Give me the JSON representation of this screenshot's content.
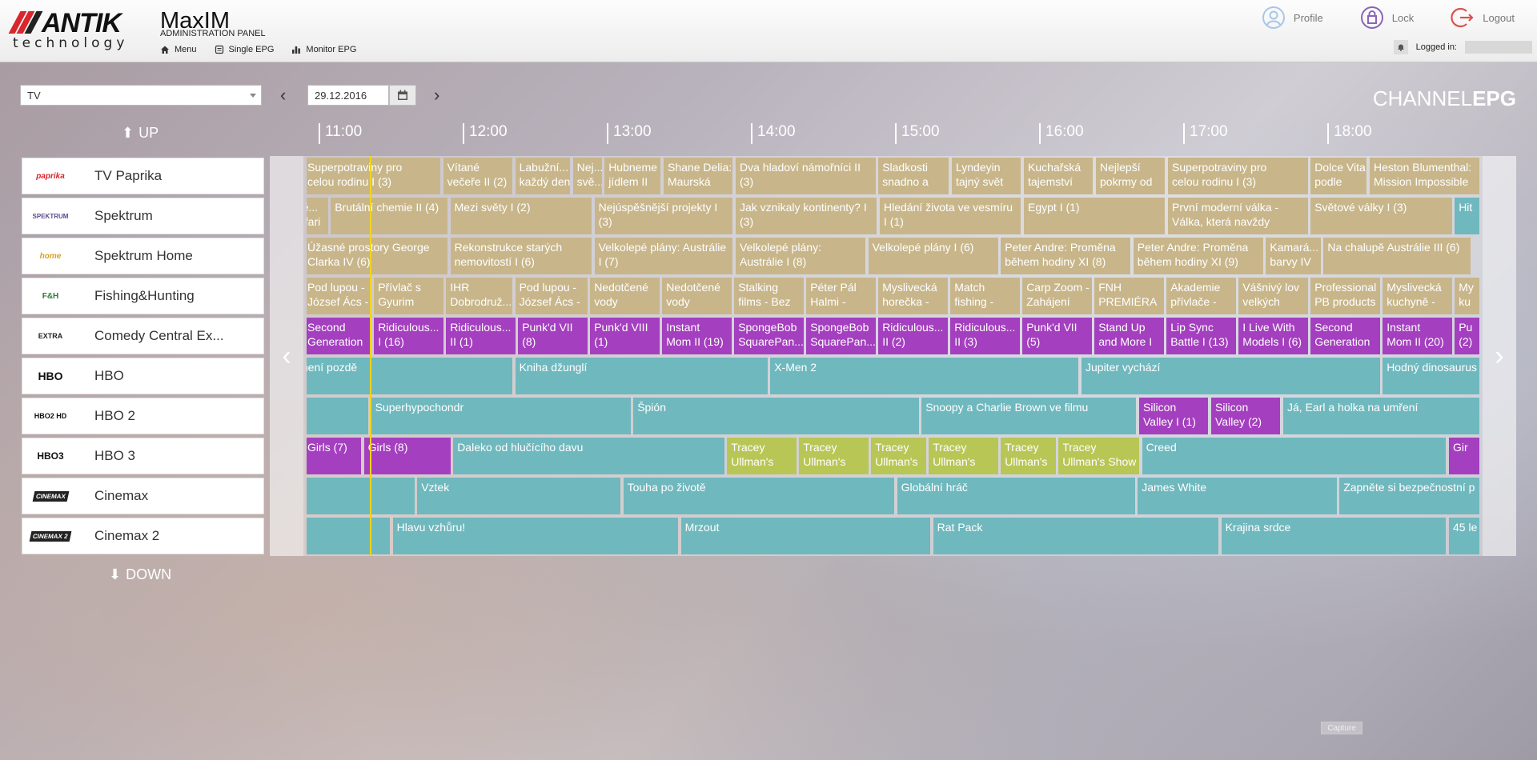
{
  "header": {
    "logo_word": "ANTIK",
    "logo_sub": "technology",
    "app_title": "MaxIM",
    "app_subtitle": "ADMINISTRATION PANEL",
    "nav": [
      {
        "label": "Menu",
        "icon": "home-icon"
      },
      {
        "label": "Single EPG",
        "icon": "list-icon"
      },
      {
        "label": "Monitor EPG",
        "icon": "bar-chart-icon"
      }
    ],
    "actions": [
      {
        "label": "Profile",
        "icon": "user-icon"
      },
      {
        "label": "Lock",
        "icon": "lock-icon"
      },
      {
        "label": "Logout",
        "icon": "logout-icon"
      }
    ],
    "logged_in_label": "Logged in:",
    "accent_colors": {
      "profile": "#a9c6e8",
      "lock": "#8a63b8",
      "logout": "#d9534f"
    }
  },
  "controls": {
    "group_select": "TV",
    "date": "29.12.2016",
    "up_label": "UP",
    "down_label": "DOWN",
    "title_light": "CHANNEL",
    "title_bold": "EPG"
  },
  "timeline": [
    "11:00",
    "12:00",
    "13:00",
    "14:00",
    "15:00",
    "16:00",
    "17:00",
    "18:00"
  ],
  "channels": [
    {
      "name": "TV Paprika",
      "logo": "paprika"
    },
    {
      "name": "Spektrum",
      "logo": "SPEKTRUM"
    },
    {
      "name": "Spektrum Home",
      "logo": "home"
    },
    {
      "name": "Fishing&Hunting",
      "logo": "F&H"
    },
    {
      "name": "Comedy Central Ex...",
      "logo": "EXTRA"
    },
    {
      "name": "HBO",
      "logo": "HBO"
    },
    {
      "name": "HBO 2",
      "logo": "HBO2 HD"
    },
    {
      "name": "HBO 3",
      "logo": "HBO3"
    },
    {
      "name": "Cinemax",
      "logo": "CINEMAX"
    },
    {
      "name": "Cinemax 2",
      "logo": "CINEMAX 2"
    }
  ],
  "colors": {
    "tan": "#c8b68a",
    "purple": "#a43fbf",
    "teal": "#6fb8be",
    "lime": "#b8c656"
  },
  "schedule": [
    [
      {
        "t": [
          "Superpotraviny pro",
          "celou rodinu I (3)"
        ],
        "s": 0,
        "e": 0.95,
        "c": "tan"
      },
      {
        "t": [
          "Vítané",
          "večeře II (2)"
        ],
        "s": 0.97,
        "e": 1.45,
        "c": "tan"
      },
      {
        "t": [
          "Labužní...",
          "každý den"
        ],
        "s": 1.47,
        "e": 1.85,
        "c": "tan"
      },
      {
        "t": [
          "Nej...",
          "svě..."
        ],
        "s": 1.87,
        "e": 2.07,
        "c": "tan"
      },
      {
        "t": [
          "Hubneme",
          "jídlem II"
        ],
        "s": 2.09,
        "e": 2.48,
        "c": "tan"
      },
      {
        "t": [
          "Shane Delia:",
          "Maurská"
        ],
        "s": 2.5,
        "e": 2.98,
        "c": "tan"
      },
      {
        "t": [
          "Dva hladoví námořníci II",
          "(3)"
        ],
        "s": 3.0,
        "e": 3.97,
        "c": "tan"
      },
      {
        "t": [
          "Sladkosti",
          "snadno a"
        ],
        "s": 3.99,
        "e": 4.48,
        "c": "tan"
      },
      {
        "t": [
          "Lyndeyin",
          "tajný svět"
        ],
        "s": 4.5,
        "e": 4.98,
        "c": "tan"
      },
      {
        "t": [
          "Kuchařská",
          "tajemství"
        ],
        "s": 5.0,
        "e": 5.48,
        "c": "tan"
      },
      {
        "t": [
          "Nejlepší",
          "pokrmy od"
        ],
        "s": 5.5,
        "e": 5.98,
        "c": "tan"
      },
      {
        "t": [
          "Superpotraviny pro",
          "celou rodinu I (3)"
        ],
        "s": 6.0,
        "e": 6.97,
        "c": "tan"
      },
      {
        "t": [
          "Dolce Vita",
          "podle"
        ],
        "s": 6.99,
        "e": 7.38,
        "c": "tan"
      },
      {
        "t": [
          "Heston Blumenthal:",
          "Mission Impossible"
        ],
        "s": 7.4,
        "e": 8.2,
        "c": "tan"
      }
    ],
    [
      {
        "t": [
          "Mě...",
          "safari"
        ],
        "s": -0.1,
        "e": 0.17,
        "c": "tan"
      },
      {
        "t": [
          "Brutální chemie II (4)"
        ],
        "s": 0.19,
        "e": 1.0,
        "c": "tan"
      },
      {
        "t": [
          "Mezi světy I (2)"
        ],
        "s": 1.02,
        "e": 2.0,
        "c": "tan"
      },
      {
        "t": [
          "Nejúspěšnější projekty I",
          "(3)"
        ],
        "s": 2.02,
        "e": 2.98,
        "c": "tan"
      },
      {
        "t": [
          "Jak vznikaly kontinenty? I",
          "(3)"
        ],
        "s": 3.0,
        "e": 3.98,
        "c": "tan"
      },
      {
        "t": [
          "Hledání života ve vesmíru",
          "I (1)"
        ],
        "s": 4.0,
        "e": 4.98,
        "c": "tan"
      },
      {
        "t": [
          "Egypt I (1)"
        ],
        "s": 5.0,
        "e": 5.98,
        "c": "tan"
      },
      {
        "t": [
          "První moderní válka -",
          "Válka, která navždy"
        ],
        "s": 6.0,
        "e": 6.97,
        "c": "tan"
      },
      {
        "t": [
          "Světové války I (3)"
        ],
        "s": 6.99,
        "e": 7.97,
        "c": "tan"
      },
      {
        "t": [
          "Hit"
        ],
        "s": 7.99,
        "e": 8.3,
        "c": "teal"
      }
    ],
    [
      {
        "t": [
          "Úžasné prostory George",
          "Clarka IV (6)"
        ],
        "s": 0,
        "e": 1.0,
        "c": "tan"
      },
      {
        "t": [
          "Rekonstrukce starých",
          "nemovitostí I (6)"
        ],
        "s": 1.02,
        "e": 2.0,
        "c": "tan"
      },
      {
        "t": [
          "Velkolepé plány: Austrálie",
          "I (7)"
        ],
        "s": 2.02,
        "e": 2.98,
        "c": "tan"
      },
      {
        "t": [
          "Velkolepé plány:",
          "Austrálie I (8)"
        ],
        "s": 3.0,
        "e": 3.9,
        "c": "tan"
      },
      {
        "t": [
          "Velkolepé plány I (6)"
        ],
        "s": 3.92,
        "e": 4.82,
        "c": "tan"
      },
      {
        "t": [
          "Peter Andre: Proměna",
          "během hodiny XI (8)"
        ],
        "s": 4.84,
        "e": 5.74,
        "c": "tan"
      },
      {
        "t": [
          "Peter Andre: Proměna",
          "během hodiny XI (9)"
        ],
        "s": 5.76,
        "e": 6.66,
        "c": "tan"
      },
      {
        "t": [
          "Kamará...",
          "barvy IV"
        ],
        "s": 6.68,
        "e": 7.06,
        "c": "tan"
      },
      {
        "t": [
          "Na chalupě Austrálie III (6)"
        ],
        "s": 7.08,
        "e": 8.1,
        "c": "tan"
      }
    ],
    [
      {
        "t": [
          "Pod lupou -",
          "József Ács -"
        ],
        "s": 0,
        "e": 0.47,
        "c": "tan"
      },
      {
        "t": [
          "Přívlač s",
          "Gyurim"
        ],
        "s": 0.49,
        "e": 0.97,
        "c": "tan"
      },
      {
        "t": [
          "IHR",
          "Dobrodruž..."
        ],
        "s": 0.99,
        "e": 1.45,
        "c": "tan"
      },
      {
        "t": [
          "Pod lupou -",
          "József Ács -"
        ],
        "s": 1.47,
        "e": 1.97,
        "c": "tan"
      },
      {
        "t": [
          "Nedotčené",
          "vody"
        ],
        "s": 1.99,
        "e": 2.47,
        "c": "tan"
      },
      {
        "t": [
          "Nedotčené",
          "vody"
        ],
        "s": 2.49,
        "e": 2.97,
        "c": "tan"
      },
      {
        "t": [
          "Stalking",
          "films - Bez"
        ],
        "s": 2.99,
        "e": 3.47,
        "c": "tan"
      },
      {
        "t": [
          "Péter Pál",
          "Halmi -"
        ],
        "s": 3.49,
        "e": 3.97,
        "c": "tan"
      },
      {
        "t": [
          "Myslivecká",
          "horečka -"
        ],
        "s": 3.99,
        "e": 4.47,
        "c": "tan"
      },
      {
        "t": [
          "Match",
          "fishing -"
        ],
        "s": 4.49,
        "e": 4.97,
        "c": "tan"
      },
      {
        "t": [
          "Carp Zoom -",
          "Zahájení"
        ],
        "s": 4.99,
        "e": 5.47,
        "c": "tan"
      },
      {
        "t": [
          "FNH",
          "PREMIÉRA"
        ],
        "s": 5.49,
        "e": 5.97,
        "c": "tan"
      },
      {
        "t": [
          "Akademie",
          "přívlače -"
        ],
        "s": 5.99,
        "e": 6.47,
        "c": "tan"
      },
      {
        "t": [
          "Vášnivý lov",
          "velkých"
        ],
        "s": 6.49,
        "e": 6.97,
        "c": "tan"
      },
      {
        "t": [
          "Professional",
          "PB products"
        ],
        "s": 6.99,
        "e": 7.47,
        "c": "tan"
      },
      {
        "t": [
          "Myslivecká",
          "kuchyně -"
        ],
        "s": 7.49,
        "e": 7.97,
        "c": "tan"
      },
      {
        "t": [
          "My",
          "ku"
        ],
        "s": 7.99,
        "e": 8.3,
        "c": "tan"
      }
    ],
    [
      {
        "t": [
          "Second",
          "Generation"
        ],
        "s": 0,
        "e": 0.47,
        "c": "purple"
      },
      {
        "t": [
          "Ridiculous...",
          "I (16)"
        ],
        "s": 0.49,
        "e": 0.97,
        "c": "purple"
      },
      {
        "t": [
          "Ridiculous...",
          "II (1)"
        ],
        "s": 0.99,
        "e": 1.47,
        "c": "purple"
      },
      {
        "t": [
          "Punk'd VII",
          "(8)"
        ],
        "s": 1.49,
        "e": 1.97,
        "c": "purple"
      },
      {
        "t": [
          "Punk'd VIII",
          "(1)"
        ],
        "s": 1.99,
        "e": 2.47,
        "c": "purple"
      },
      {
        "t": [
          "Instant",
          "Mom II (19)"
        ],
        "s": 2.49,
        "e": 2.97,
        "c": "purple"
      },
      {
        "t": [
          "SpongeBob",
          "SquarePan..."
        ],
        "s": 2.99,
        "e": 3.47,
        "c": "purple"
      },
      {
        "t": [
          "SpongeBob",
          "SquarePan..."
        ],
        "s": 3.49,
        "e": 3.97,
        "c": "purple"
      },
      {
        "t": [
          "Ridiculous...",
          "II (2)"
        ],
        "s": 3.99,
        "e": 4.47,
        "c": "purple"
      },
      {
        "t": [
          "Ridiculous...",
          "II (3)"
        ],
        "s": 4.49,
        "e": 4.97,
        "c": "purple"
      },
      {
        "t": [
          "Punk'd VII",
          "(5)"
        ],
        "s": 4.99,
        "e": 5.47,
        "c": "purple"
      },
      {
        "t": [
          "Stand Up",
          "and More I"
        ],
        "s": 5.49,
        "e": 5.97,
        "c": "purple"
      },
      {
        "t": [
          "Lip Sync",
          "Battle I (13)"
        ],
        "s": 5.99,
        "e": 6.47,
        "c": "purple"
      },
      {
        "t": [
          "I Live With",
          "Models I (6)"
        ],
        "s": 6.49,
        "e": 6.97,
        "c": "purple"
      },
      {
        "t": [
          "Second",
          "Generation"
        ],
        "s": 6.99,
        "e": 7.47,
        "c": "purple"
      },
      {
        "t": [
          "Instant",
          "Mom II (20)"
        ],
        "s": 7.49,
        "e": 7.97,
        "c": "purple"
      },
      {
        "t": [
          "Pu",
          "(2)"
        ],
        "s": 7.99,
        "e": 8.3,
        "c": "purple"
      }
    ],
    [
      {
        "t": [
          "v není pozdě"
        ],
        "s": -0.1,
        "e": 1.45,
        "c": "teal"
      },
      {
        "t": [
          "Kniha džunglí"
        ],
        "s": 1.47,
        "e": 3.22,
        "c": "teal"
      },
      {
        "t": [
          "X-Men 2"
        ],
        "s": 3.24,
        "e": 5.38,
        "c": "teal"
      },
      {
        "t": [
          "Jupiter vychází"
        ],
        "s": 5.4,
        "e": 7.47,
        "c": "teal"
      },
      {
        "t": [
          "Hodný dinosaurus"
        ],
        "s": 7.49,
        "e": 8.3,
        "c": "teal"
      }
    ],
    [
      {
        "t": [
          ""
        ],
        "s": -0.1,
        "e": 0.45,
        "c": "teal"
      },
      {
        "t": [
          "Superhypochondr"
        ],
        "s": 0.47,
        "e": 2.27,
        "c": "teal"
      },
      {
        "t": [
          "Špión"
        ],
        "s": 2.29,
        "e": 4.27,
        "c": "teal"
      },
      {
        "t": [
          "Snoopy a Charlie Brown ve filmu"
        ],
        "s": 4.29,
        "e": 5.78,
        "c": "teal"
      },
      {
        "t": [
          "Silicon",
          "Valley I (1)"
        ],
        "s": 5.8,
        "e": 6.28,
        "c": "purple"
      },
      {
        "t": [
          "Silicon",
          "Valley (2)"
        ],
        "s": 6.3,
        "e": 6.78,
        "c": "purple"
      },
      {
        "t": [
          "Já, Earl a holka na umření"
        ],
        "s": 6.8,
        "e": 8.3,
        "c": "teal"
      }
    ],
    [
      {
        "t": [
          "Girls (7)"
        ],
        "s": 0,
        "e": 0.4,
        "c": "purple"
      },
      {
        "t": [
          "Girls (8)"
        ],
        "s": 0.42,
        "e": 1.02,
        "c": "purple"
      },
      {
        "t": [
          "Daleko od hlučícího davu"
        ],
        "s": 1.04,
        "e": 2.92,
        "c": "teal"
      },
      {
        "t": [
          "Tracey",
          "Ullman's"
        ],
        "s": 2.94,
        "e": 3.42,
        "c": "lime"
      },
      {
        "t": [
          "Tracey",
          "Ullman's"
        ],
        "s": 3.44,
        "e": 3.92,
        "c": "lime"
      },
      {
        "t": [
          "Tracey",
          "Ullman's"
        ],
        "s": 3.94,
        "e": 4.32,
        "c": "lime"
      },
      {
        "t": [
          "Tracey",
          "Ullman's"
        ],
        "s": 4.34,
        "e": 4.82,
        "c": "lime"
      },
      {
        "t": [
          "Tracey",
          "Ullman's"
        ],
        "s": 4.84,
        "e": 5.22,
        "c": "lime"
      },
      {
        "t": [
          "Tracey",
          "Ullman's Show"
        ],
        "s": 5.24,
        "e": 5.8,
        "c": "lime"
      },
      {
        "t": [
          "Creed"
        ],
        "s": 5.82,
        "e": 7.93,
        "c": "teal"
      },
      {
        "t": [
          "Gir"
        ],
        "s": 7.95,
        "e": 8.3,
        "c": "purple"
      }
    ],
    [
      {
        "t": [
          ""
        ],
        "s": -0.1,
        "e": 0.77,
        "c": "teal"
      },
      {
        "t": [
          "Vztek"
        ],
        "s": 0.79,
        "e": 2.2,
        "c": "teal"
      },
      {
        "t": [
          "Touha po životě"
        ],
        "s": 2.22,
        "e": 4.1,
        "c": "teal"
      },
      {
        "t": [
          "Globální hráč"
        ],
        "s": 4.12,
        "e": 5.77,
        "c": "teal"
      },
      {
        "t": [
          "James White"
        ],
        "s": 5.79,
        "e": 7.17,
        "c": "teal"
      },
      {
        "t": [
          "Zapněte si bezpečnostní p"
        ],
        "s": 7.19,
        "e": 8.3,
        "c": "teal"
      }
    ],
    [
      {
        "t": [
          ""
        ],
        "s": -0.1,
        "e": 0.6,
        "c": "teal"
      },
      {
        "t": [
          "Hlavu vzhůru!"
        ],
        "s": 0.62,
        "e": 2.6,
        "c": "teal"
      },
      {
        "t": [
          "Mrzout"
        ],
        "s": 2.62,
        "e": 4.35,
        "c": "teal"
      },
      {
        "t": [
          "Rat Pack"
        ],
        "s": 4.37,
        "e": 6.35,
        "c": "teal"
      },
      {
        "t": [
          "Krajina srdce"
        ],
        "s": 6.37,
        "e": 7.93,
        "c": "teal"
      },
      {
        "t": [
          "45 le"
        ],
        "s": 7.95,
        "e": 8.3,
        "c": "teal"
      }
    ]
  ],
  "capture_label": "Capture"
}
